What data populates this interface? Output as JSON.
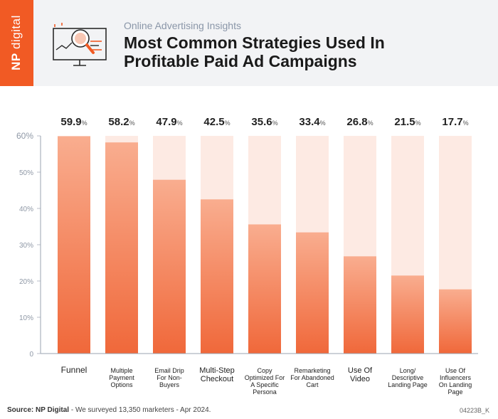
{
  "brand": {
    "logo_first": "NP",
    "logo_second": "digital",
    "accent": "#f15a24"
  },
  "header": {
    "eyebrow": "Online Advertising Insights",
    "title_line1": "Most Common Strategies Used In",
    "title_line2": "Profitable Paid Ad Campaigns",
    "icon": "magnifier-chart-monitor-icon"
  },
  "chart_data": {
    "type": "bar",
    "categories": [
      [
        "Funnel"
      ],
      [
        "Multiple",
        "Payment",
        "Options"
      ],
      [
        "Email Drip",
        "For Non-",
        "Buyers"
      ],
      [
        "Multi-Step",
        "Checkout"
      ],
      [
        "Copy",
        "Optimized For",
        "A Specific",
        "Persona"
      ],
      [
        "Remarketing",
        "For Abandoned",
        "Cart"
      ],
      [
        "Use Of",
        "Video"
      ],
      [
        "Long/",
        "Descriptive",
        "Landing Page"
      ],
      [
        "Use Of",
        "Influencers",
        "On Landing",
        "Page"
      ]
    ],
    "values": [
      59.9,
      58.2,
      47.9,
      42.5,
      35.6,
      33.4,
      26.8,
      21.5,
      17.7
    ],
    "value_suffix": "%",
    "yticks": [
      "0",
      "10%",
      "20%",
      "30%",
      "40%",
      "50%",
      "60%"
    ],
    "ylim": [
      0,
      60
    ],
    "grid": false,
    "colors": {
      "bar_top": "#f9ad8f",
      "bar_bottom": "#f0683a",
      "track": "#fdeae3"
    }
  },
  "footer": {
    "source_label": "Source: NP Digital",
    "source_text": " - We surveyed 13,350 marketers - Apr 2024.",
    "code": "04223B_K"
  }
}
